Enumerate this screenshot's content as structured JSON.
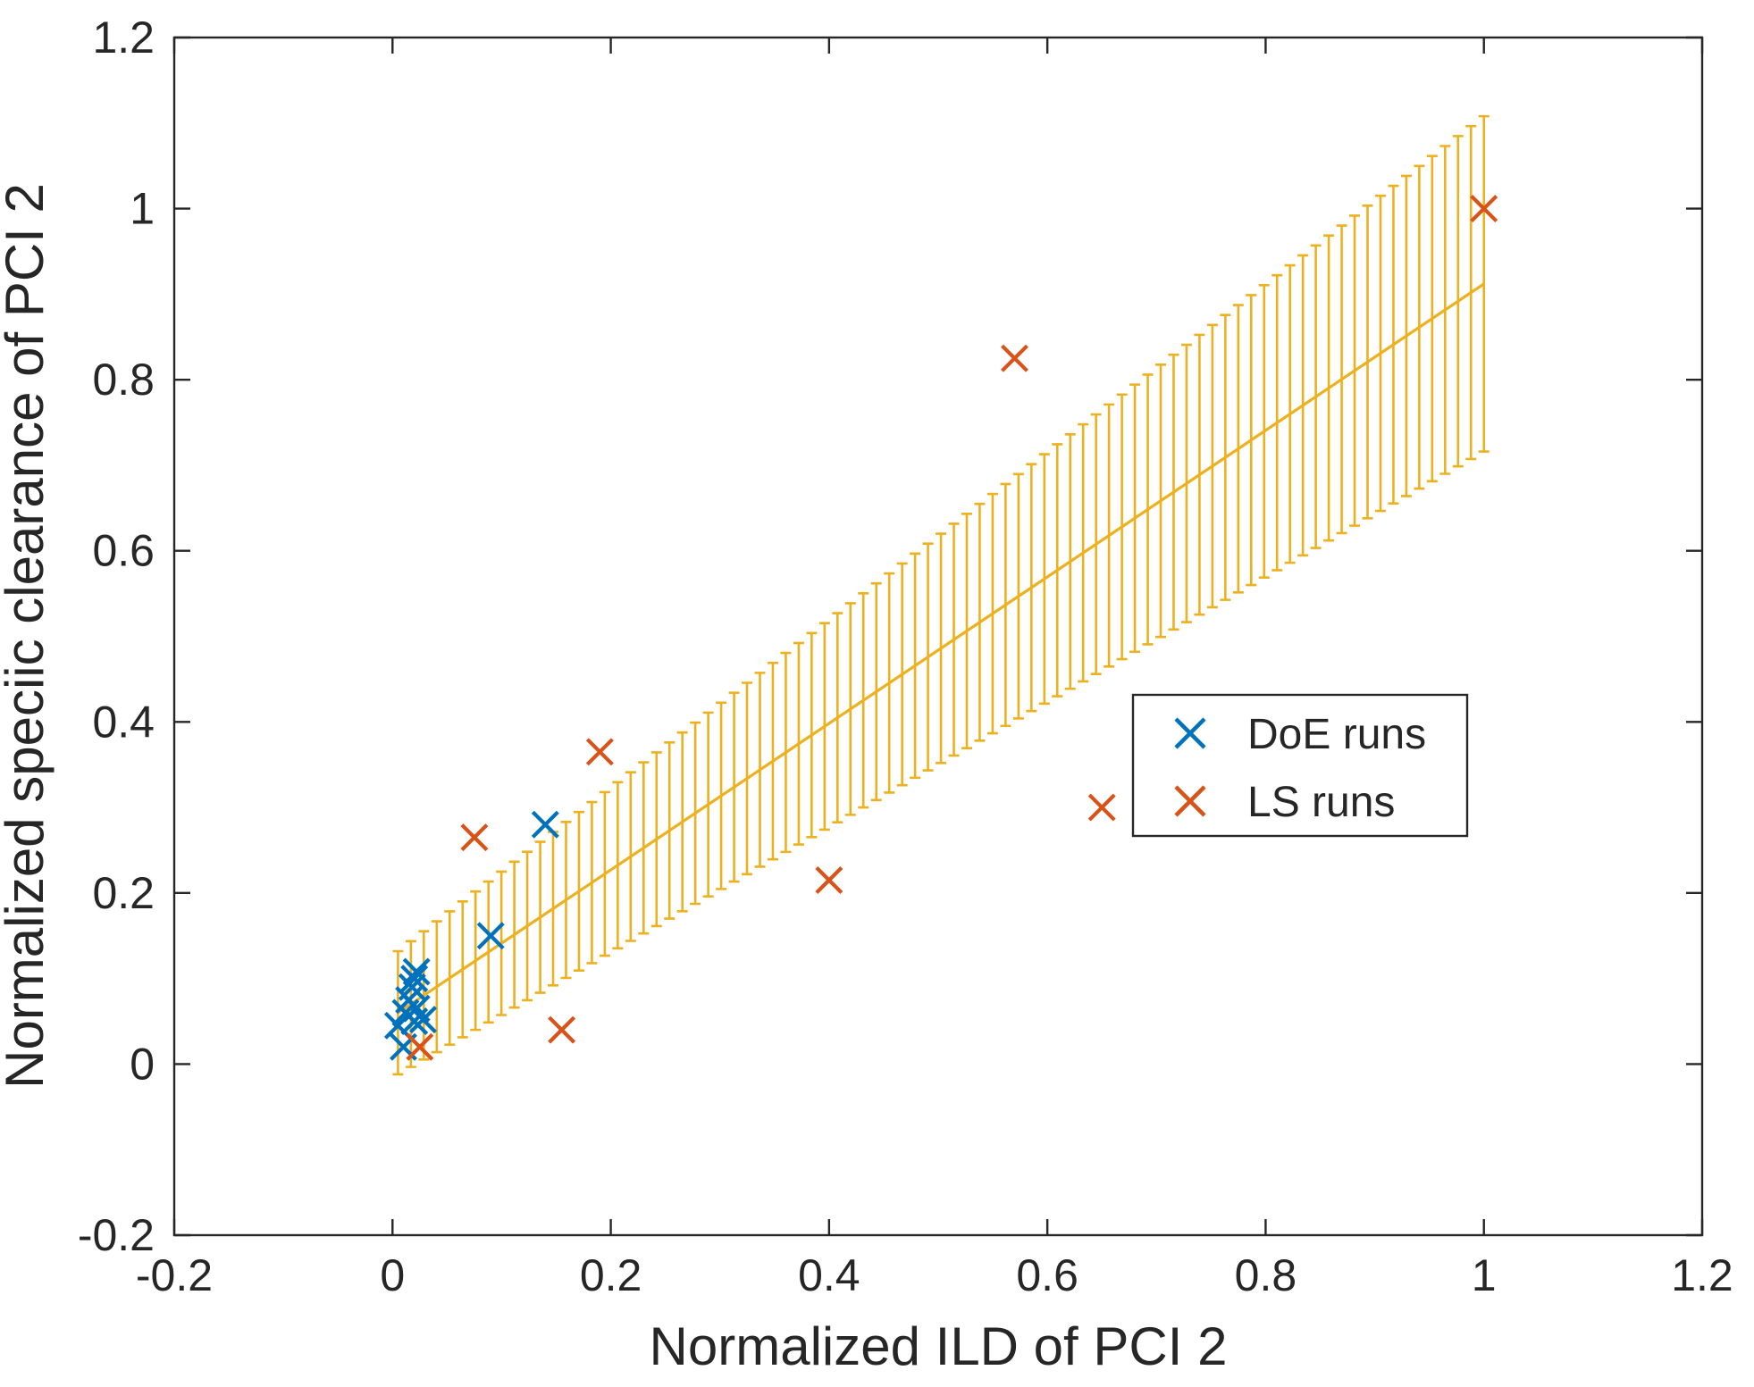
{
  "figure": {
    "background": "#ffffff"
  },
  "chart_data": {
    "type": "scatter",
    "title": "",
    "xlabel": "Normalized ILD of PCI 2",
    "ylabel": "Normalized speciic clearance of PCI 2",
    "xlim": [
      -0.2,
      1.2
    ],
    "ylim": [
      -0.2,
      1.2
    ],
    "xticks": [
      -0.2,
      0,
      0.2,
      0.4,
      0.6,
      0.8,
      1,
      1.2
    ],
    "xtick_labels": [
      "-0.2",
      "0",
      "0.2",
      "0.4",
      "0.6",
      "0.8",
      "1",
      "1.2"
    ],
    "yticks": [
      -0.2,
      0,
      0.2,
      0.4,
      0.6,
      0.8,
      1,
      1.2
    ],
    "ytick_labels": [
      "-0.2",
      "0",
      "0.2",
      "0.4",
      "0.6",
      "0.8",
      "1",
      "1.2"
    ],
    "grid": false,
    "axis_color": "#262626",
    "legend": {
      "position": "inside-lower-right",
      "background": "#ffffff",
      "border_color": "#262626",
      "entries": [
        "DoE runs",
        "LS runs"
      ]
    },
    "series": [
      {
        "name": "DoE runs",
        "marker": "x",
        "color": "#0072BD",
        "points": [
          [
            0.01,
            0.02
          ],
          [
            0.005,
            0.045
          ],
          [
            0.012,
            0.06
          ],
          [
            0.02,
            0.05
          ],
          [
            0.022,
            0.065
          ],
          [
            0.028,
            0.052
          ],
          [
            0.015,
            0.075
          ],
          [
            0.018,
            0.09
          ],
          [
            0.02,
            0.1
          ],
          [
            0.022,
            0.108
          ],
          [
            0.09,
            0.15
          ],
          [
            0.14,
            0.28
          ]
        ]
      },
      {
        "name": "LS runs",
        "marker": "x",
        "color": "#D95319",
        "points": [
          [
            0.025,
            0.02
          ],
          [
            0.075,
            0.265
          ],
          [
            0.155,
            0.04
          ],
          [
            0.19,
            0.365
          ],
          [
            0.4,
            0.215
          ],
          [
            0.57,
            0.825
          ],
          [
            0.65,
            0.3
          ],
          [
            1.0,
            1.0
          ]
        ]
      }
    ],
    "error_band": {
      "name": "linear fit with error bars",
      "color": "#EDB120",
      "x_start": 0.005,
      "x_end": 1.0,
      "y_start": 0.06,
      "y_end": 0.912,
      "halfwidth_start": 0.072,
      "halfwidth_end": 0.196,
      "n_bars": 85
    }
  }
}
